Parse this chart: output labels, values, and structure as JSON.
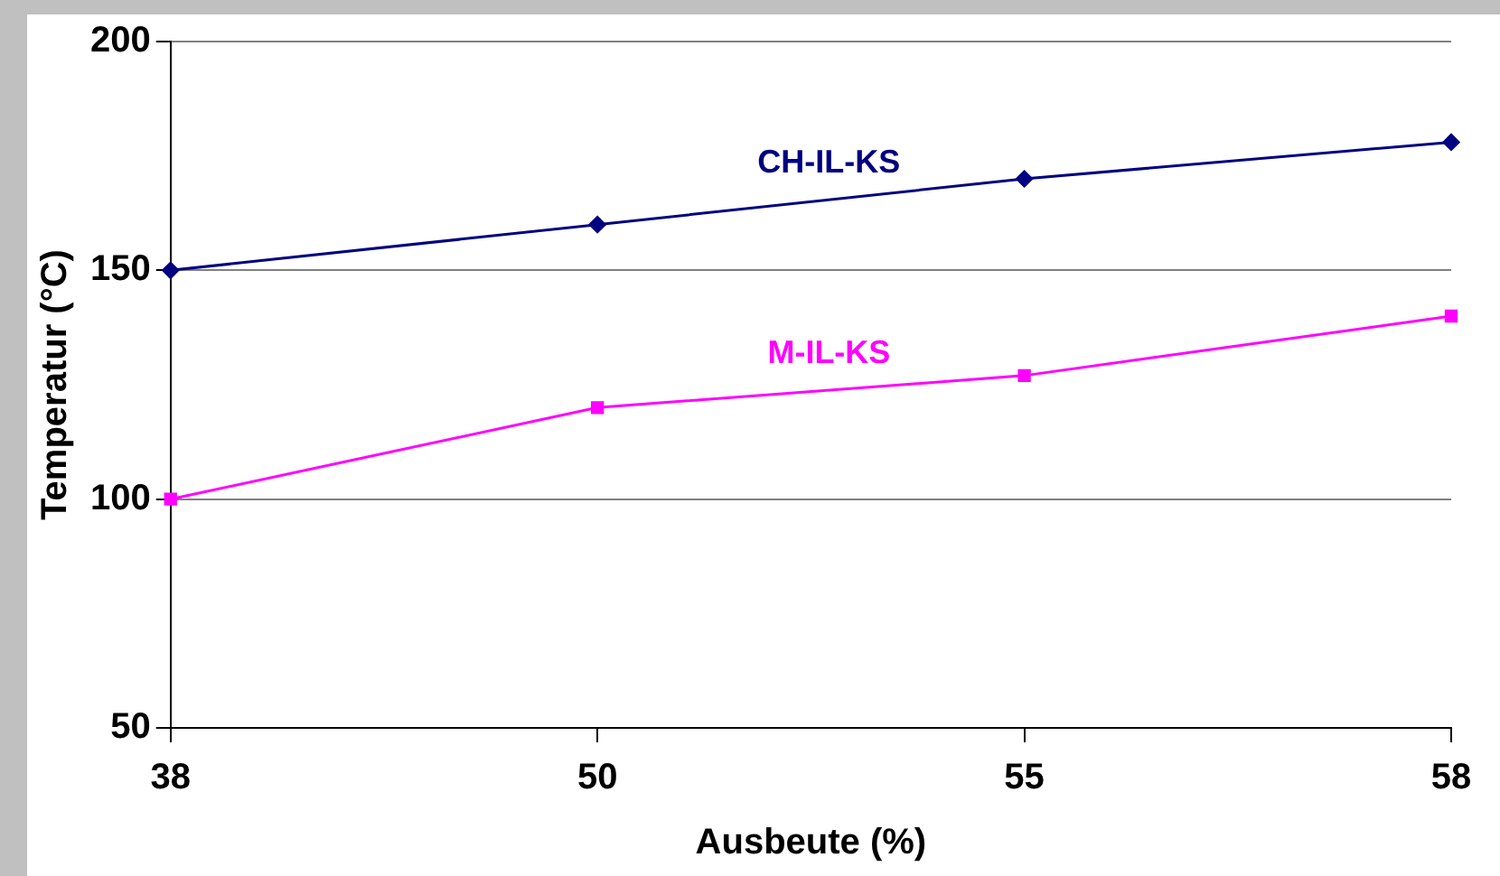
{
  "chart_data": {
    "type": "line",
    "xlabel": "Ausbeute (%)",
    "ylabel": "Temperatur (°C)",
    "categories": [
      "38",
      "50",
      "55",
      "58"
    ],
    "series": [
      {
        "name": "CH-IL-KS",
        "color": "#000080",
        "marker": "diamond",
        "values": [
          150,
          160,
          170,
          178
        ]
      },
      {
        "name": "M-IL-KS",
        "color": "#ff00ff",
        "marker": "square",
        "values": [
          100,
          120,
          127,
          140
        ]
      }
    ],
    "ylim": [
      50,
      200
    ],
    "yticks": [
      50,
      100,
      150,
      200
    ],
    "grid": "y",
    "legend": false,
    "line_style": "solid"
  }
}
